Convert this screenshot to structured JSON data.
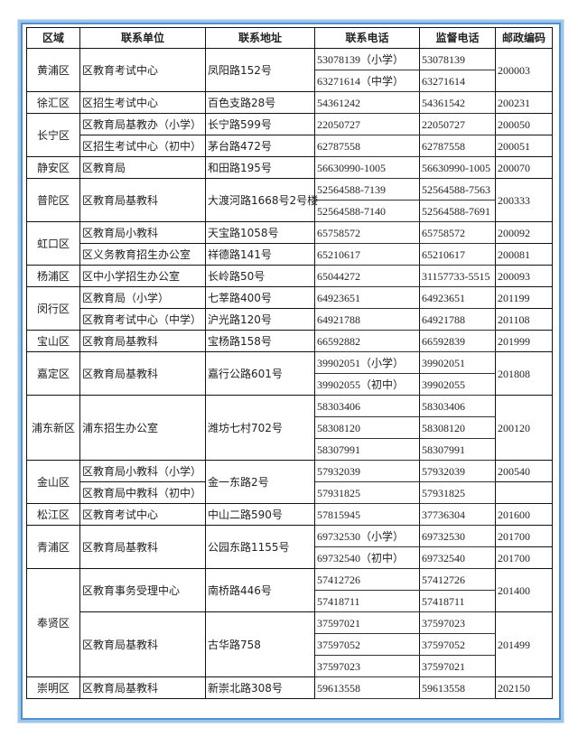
{
  "headers": [
    "区域",
    "联系单位",
    "联系地址",
    "联系电话",
    "监督电话",
    "邮政编码"
  ],
  "rows": [
    [
      {
        "t": "黄浦区",
        "rs": 2,
        "c": 0
      },
      {
        "t": "区教育考试中心",
        "rs": 2,
        "c": 1
      },
      {
        "t": "凤阳路152号",
        "rs": 2,
        "c": 2
      },
      {
        "t": "53078139（小学）",
        "c": 3
      },
      {
        "t": "53078139",
        "c": 4
      },
      {
        "t": "200003",
        "rs": 2,
        "c": 5
      }
    ],
    [
      {
        "t": "63271614（中学）",
        "c": 3
      },
      {
        "t": "63271614",
        "c": 4
      }
    ],
    [
      {
        "t": "徐汇区",
        "c": 0
      },
      {
        "t": "区招生考试中心",
        "c": 1
      },
      {
        "t": "百色支路28号",
        "c": 2
      },
      {
        "t": "54361242",
        "c": 3
      },
      {
        "t": "54361542",
        "c": 4
      },
      {
        "t": "200231",
        "c": 5
      }
    ],
    [
      {
        "t": "长宁区",
        "rs": 2,
        "c": 0
      },
      {
        "t": "区教育局基教办（小学）",
        "c": 1
      },
      {
        "t": "长宁路599号",
        "c": 2
      },
      {
        "t": "22050727",
        "c": 3
      },
      {
        "t": "22050727",
        "c": 4
      },
      {
        "t": "200050",
        "c": 5
      }
    ],
    [
      {
        "t": "区招生考试中心（初中）",
        "c": 1
      },
      {
        "t": "茅台路472号",
        "c": 2
      },
      {
        "t": "62787558",
        "c": 3
      },
      {
        "t": "62787558",
        "c": 4
      },
      {
        "t": "200051",
        "c": 5
      }
    ],
    [
      {
        "t": "静安区",
        "c": 0
      },
      {
        "t": "区教育局",
        "c": 1
      },
      {
        "t": "和田路195号",
        "c": 2
      },
      {
        "t": "56630990-1005",
        "c": 3
      },
      {
        "t": "56630990-1005",
        "c": 4
      },
      {
        "t": "200070",
        "c": 5
      }
    ],
    [
      {
        "t": "普陀区",
        "rs": 2,
        "c": 0
      },
      {
        "t": "区教育局基教科",
        "rs": 2,
        "c": 1
      },
      {
        "t": "大渡河路1668号2号楼",
        "rs": 2,
        "c": 2
      },
      {
        "t": "52564588-7139",
        "c": 3
      },
      {
        "t": "52564588-7563",
        "c": 4
      },
      {
        "t": "200333",
        "rs": 2,
        "c": 5
      }
    ],
    [
      {
        "t": "52564588-7140",
        "c": 3
      },
      {
        "t": "52564588-7691",
        "c": 4
      }
    ],
    [
      {
        "t": "虹口区",
        "rs": 2,
        "c": 0
      },
      {
        "t": "区教育局小教科",
        "c": 1
      },
      {
        "t": "天宝路1058号",
        "c": 2
      },
      {
        "t": "65758572",
        "c": 3
      },
      {
        "t": "65758572",
        "c": 4
      },
      {
        "t": "200092",
        "c": 5
      }
    ],
    [
      {
        "t": "区义务教育招生办公室",
        "c": 1
      },
      {
        "t": "祥德路141号",
        "c": 2
      },
      {
        "t": "65210617",
        "c": 3
      },
      {
        "t": "65210617",
        "c": 4
      },
      {
        "t": "200081",
        "c": 5
      }
    ],
    [
      {
        "t": "杨浦区",
        "c": 0
      },
      {
        "t": "区中小学招生办公室",
        "c": 1
      },
      {
        "t": "长岭路50号",
        "c": 2
      },
      {
        "t": "65044272",
        "c": 3
      },
      {
        "t": "31157733-5515",
        "c": 4
      },
      {
        "t": "200093",
        "c": 5
      }
    ],
    [
      {
        "t": "闵行区",
        "rs": 2,
        "c": 0
      },
      {
        "t": "区教育局（小学）",
        "c": 1
      },
      {
        "t": "七莘路400号",
        "c": 2
      },
      {
        "t": "64923651",
        "c": 3
      },
      {
        "t": "64923651",
        "c": 4
      },
      {
        "t": "201199",
        "c": 5
      }
    ],
    [
      {
        "t": "区教育考试中心（中学）",
        "c": 1
      },
      {
        "t": "沪光路120号",
        "c": 2
      },
      {
        "t": "64921788",
        "c": 3
      },
      {
        "t": "64921788",
        "c": 4
      },
      {
        "t": "201108",
        "c": 5
      }
    ],
    [
      {
        "t": "宝山区",
        "c": 0
      },
      {
        "t": "区教育局基教科",
        "c": 1
      },
      {
        "t": "宝杨路158号",
        "c": 2
      },
      {
        "t": "66592882",
        "c": 3
      },
      {
        "t": "66592839",
        "c": 4
      },
      {
        "t": "201999",
        "c": 5
      }
    ],
    [
      {
        "t": "嘉定区",
        "rs": 2,
        "c": 0
      },
      {
        "t": "区教育局基教科",
        "rs": 2,
        "c": 1
      },
      {
        "t": "嘉行公路601号",
        "rs": 2,
        "c": 2
      },
      {
        "t": "39902051（小学）",
        "c": 3
      },
      {
        "t": "39902051",
        "c": 4
      },
      {
        "t": "201808",
        "rs": 2,
        "c": 5
      }
    ],
    [
      {
        "t": "39902055（初中）",
        "c": 3
      },
      {
        "t": "39902055",
        "c": 4
      }
    ],
    [
      {
        "t": "浦东新区",
        "rs": 3,
        "c": 0
      },
      {
        "t": "浦东招生办公室",
        "rs": 3,
        "c": 1
      },
      {
        "t": "潍坊七村702号",
        "rs": 3,
        "c": 2
      },
      {
        "t": "58303406",
        "c": 3
      },
      {
        "t": "58303406",
        "c": 4
      },
      {
        "t": "200120",
        "rs": 3,
        "c": 5
      }
    ],
    [
      {
        "t": "58308120",
        "c": 3
      },
      {
        "t": "58308120",
        "c": 4
      }
    ],
    [
      {
        "t": "58307991",
        "c": 3
      },
      {
        "t": "58307991",
        "c": 4
      }
    ],
    [
      {
        "t": "金山区",
        "rs": 2,
        "c": 0
      },
      {
        "t": "区教育局小教科（小学）",
        "c": 1
      },
      {
        "t": "金一东路2号",
        "rs": 2,
        "c": 2
      },
      {
        "t": "57932039",
        "c": 3
      },
      {
        "t": "57932039",
        "c": 4
      },
      {
        "t": "200540",
        "c": 5
      }
    ],
    [
      {
        "t": "区教育局中教科（初中）",
        "c": 1
      },
      {
        "t": "57931825",
        "c": 3
      },
      {
        "t": "57931825",
        "c": 4
      },
      {
        "t": "",
        "c": 5
      }
    ],
    [
      {
        "t": "松江区",
        "c": 0
      },
      {
        "t": "区教育考试中心",
        "c": 1
      },
      {
        "t": "中山二路590号",
        "c": 2
      },
      {
        "t": "57815945",
        "c": 3
      },
      {
        "t": "37736304",
        "c": 4
      },
      {
        "t": "201600",
        "c": 5
      }
    ],
    [
      {
        "t": "青浦区",
        "rs": 2,
        "c": 0
      },
      {
        "t": "区教育局基教科",
        "rs": 2,
        "c": 1
      },
      {
        "t": "公园东路1155号",
        "rs": 2,
        "c": 2
      },
      {
        "t": "69732530（小学）",
        "c": 3
      },
      {
        "t": "69732530",
        "c": 4
      },
      {
        "t": "201700",
        "c": 5
      }
    ],
    [
      {
        "t": "69732540（初中）",
        "c": 3
      },
      {
        "t": "69732540",
        "c": 4
      },
      {
        "t": "201700",
        "c": 5
      }
    ],
    [
      {
        "t": "奉贤区",
        "rs": 5,
        "c": 0
      },
      {
        "t": "区教育事务受理中心",
        "rs": 2,
        "c": 1
      },
      {
        "t": "南桥路446号",
        "rs": 2,
        "c": 2
      },
      {
        "t": "57412726",
        "c": 3
      },
      {
        "t": "57412726",
        "c": 4
      },
      {
        "t": "201400",
        "rs": 2,
        "c": 5
      }
    ],
    [
      {
        "t": "57418711",
        "c": 3
      },
      {
        "t": "57418711",
        "c": 4
      }
    ],
    [
      {
        "t": "区教育局基教科",
        "rs": 3,
        "c": 1
      },
      {
        "t": "古华路758",
        "rs": 3,
        "c": 2
      },
      {
        "t": "37597021",
        "c": 3
      },
      {
        "t": "37597023",
        "c": 4
      },
      {
        "t": "201499",
        "rs": 3,
        "c": 5
      }
    ],
    [
      {
        "t": "37597052",
        "c": 3
      },
      {
        "t": "37597052",
        "c": 4
      }
    ],
    [
      {
        "t": "37597023",
        "c": 3
      },
      {
        "t": "37597021",
        "c": 4
      }
    ],
    [
      {
        "t": "崇明区",
        "c": 0
      },
      {
        "t": "区教育局基教科",
        "c": 1
      },
      {
        "t": "新崇北路308号",
        "c": 2
      },
      {
        "t": "59613558",
        "c": 3
      },
      {
        "t": "59613558",
        "c": 4
      },
      {
        "t": "202150",
        "c": 5
      }
    ]
  ]
}
